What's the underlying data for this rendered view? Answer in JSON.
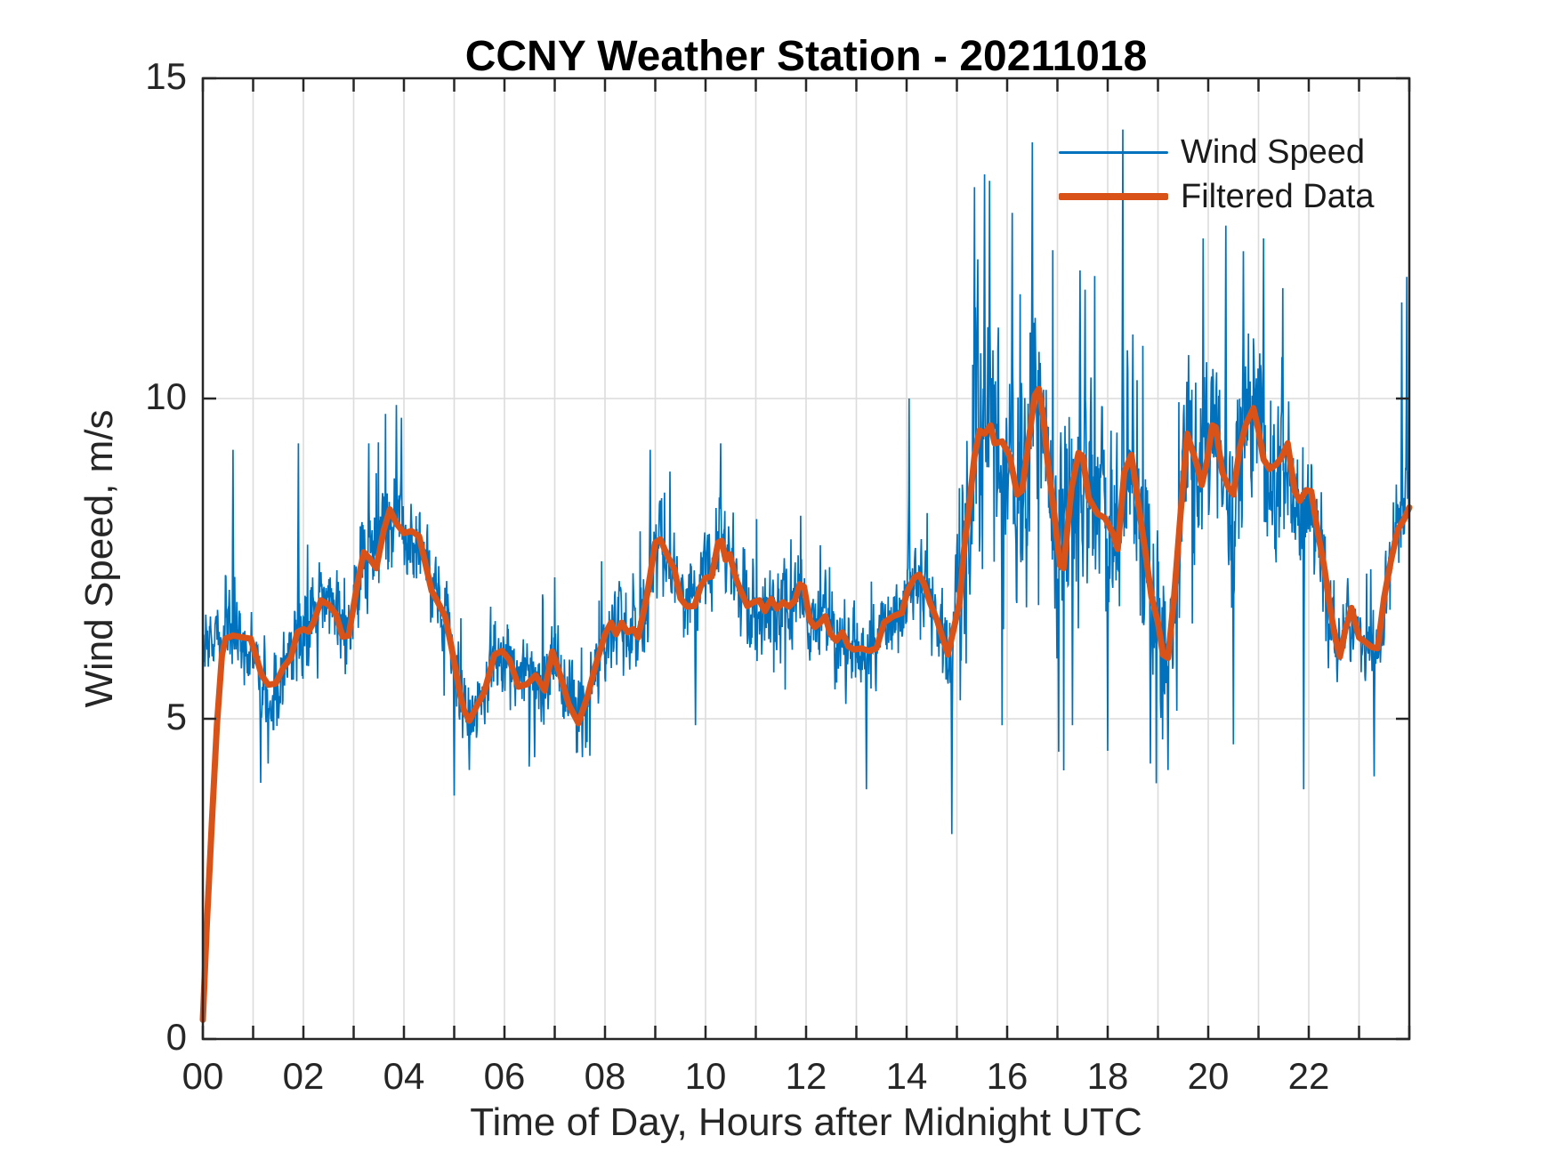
{
  "figure": {
    "title": "CCNY Weather Station - 20211018"
  },
  "axes": {
    "xlabel": "Time of Day, Hours after Midnight UTC",
    "ylabel": "Wind Speed, m/s",
    "xlim": [
      0,
      24
    ],
    "ylim": [
      0,
      15
    ],
    "x_tick_step_hours": 1,
    "x_label_hours": [
      0,
      2,
      4,
      6,
      8,
      10,
      12,
      14,
      16,
      18,
      20,
      22
    ],
    "x_tick_labels": [
      "00",
      "02",
      "04",
      "06",
      "08",
      "10",
      "12",
      "14",
      "16",
      "18",
      "20",
      "22"
    ],
    "y_ticks": [
      0,
      5,
      10,
      15
    ],
    "y_tick_labels": [
      "0",
      "5",
      "10",
      "15"
    ],
    "grid": "on"
  },
  "legend": {
    "location": "upper right inside, transparent",
    "entries": [
      {
        "label": "Wind Speed",
        "color": "#0072BD",
        "line_width": 2
      },
      {
        "label": "Filtered Data",
        "color": "#D95319",
        "line_width": 7
      }
    ]
  },
  "colors": {
    "raw_series": "#0072BD",
    "filtered_series": "#D95319",
    "grid": "#dcdcdc",
    "axis_box": "#262626",
    "text": "#262626",
    "title_text": "#000000"
  },
  "chart_data": {
    "type": "line",
    "title": "CCNY Weather Station - 20211018",
    "xlabel": "Time of Day, Hours after Midnight UTC",
    "ylabel": "Wind Speed, m/s",
    "xlim": [
      0,
      24
    ],
    "ylim": [
      0,
      15
    ],
    "series": [
      {
        "name": "Wind Speed",
        "color": "#0072BD",
        "description": "High-frequency noisy wind speed; rendered as filtered baseline plus seeded stochastic gust noise bounded by noise_envelope and pinned at extreme_points."
      },
      {
        "name": "Filtered Data",
        "color": "#D95319",
        "points_h_v": [
          [
            0,
            0.3
          ],
          [
            0.08,
            1.8
          ],
          [
            0.18,
            3.4
          ],
          [
            0.28,
            4.9
          ],
          [
            0.38,
            6.0
          ],
          [
            0.45,
            6.25
          ],
          [
            0.6,
            6.3
          ],
          [
            0.8,
            6.27
          ],
          [
            0.95,
            6.25
          ],
          [
            1.05,
            6.0
          ],
          [
            1.17,
            5.68
          ],
          [
            1.3,
            5.53
          ],
          [
            1.45,
            5.55
          ],
          [
            1.6,
            5.8
          ],
          [
            1.75,
            5.95
          ],
          [
            1.88,
            6.35
          ],
          [
            2.0,
            6.4
          ],
          [
            2.1,
            6.36
          ],
          [
            2.2,
            6.5
          ],
          [
            2.35,
            6.85
          ],
          [
            2.5,
            6.78
          ],
          [
            2.65,
            6.63
          ],
          [
            2.78,
            6.28
          ],
          [
            2.9,
            6.3
          ],
          [
            3.05,
            7.0
          ],
          [
            3.2,
            7.6
          ],
          [
            3.32,
            7.5
          ],
          [
            3.45,
            7.35
          ],
          [
            3.6,
            7.95
          ],
          [
            3.72,
            8.27
          ],
          [
            3.85,
            8.05
          ],
          [
            4.0,
            7.9
          ],
          [
            4.15,
            7.93
          ],
          [
            4.3,
            7.85
          ],
          [
            4.42,
            7.45
          ],
          [
            4.55,
            7.0
          ],
          [
            4.7,
            6.78
          ],
          [
            4.82,
            6.6
          ],
          [
            4.95,
            6.1
          ],
          [
            5.1,
            5.45
          ],
          [
            5.2,
            5.12
          ],
          [
            5.3,
            4.97
          ],
          [
            5.45,
            5.2
          ],
          [
            5.6,
            5.42
          ],
          [
            5.8,
            6.0
          ],
          [
            5.95,
            6.06
          ],
          [
            6.1,
            5.92
          ],
          [
            6.28,
            5.5
          ],
          [
            6.45,
            5.54
          ],
          [
            6.62,
            5.68
          ],
          [
            6.8,
            5.44
          ],
          [
            6.95,
            6.05
          ],
          [
            7.1,
            5.7
          ],
          [
            7.28,
            5.22
          ],
          [
            7.47,
            4.93
          ],
          [
            7.65,
            5.35
          ],
          [
            7.82,
            5.85
          ],
          [
            8.0,
            6.32
          ],
          [
            8.12,
            6.5
          ],
          [
            8.22,
            6.32
          ],
          [
            8.33,
            6.5
          ],
          [
            8.45,
            6.35
          ],
          [
            8.56,
            6.4
          ],
          [
            8.66,
            6.27
          ],
          [
            8.84,
            6.95
          ],
          [
            9.0,
            7.75
          ],
          [
            9.1,
            7.8
          ],
          [
            9.24,
            7.55
          ],
          [
            9.38,
            7.33
          ],
          [
            9.5,
            6.88
          ],
          [
            9.63,
            6.75
          ],
          [
            9.78,
            6.76
          ],
          [
            9.9,
            7.06
          ],
          [
            10.0,
            7.2
          ],
          [
            10.12,
            7.22
          ],
          [
            10.25,
            7.75
          ],
          [
            10.32,
            7.78
          ],
          [
            10.4,
            7.48
          ],
          [
            10.48,
            7.57
          ],
          [
            10.6,
            7.2
          ],
          [
            10.7,
            7.0
          ],
          [
            10.83,
            6.76
          ],
          [
            10.95,
            6.82
          ],
          [
            11.07,
            6.85
          ],
          [
            11.18,
            6.68
          ],
          [
            11.3,
            6.87
          ],
          [
            11.42,
            6.72
          ],
          [
            11.54,
            6.82
          ],
          [
            11.66,
            6.75
          ],
          [
            11.78,
            6.85
          ],
          [
            11.87,
            7.1
          ],
          [
            11.96,
            7.06
          ],
          [
            12.07,
            6.55
          ],
          [
            12.17,
            6.43
          ],
          [
            12.28,
            6.5
          ],
          [
            12.38,
            6.6
          ],
          [
            12.48,
            6.33
          ],
          [
            12.6,
            6.22
          ],
          [
            12.72,
            6.35
          ],
          [
            12.84,
            6.13
          ],
          [
            12.95,
            6.08
          ],
          [
            13.1,
            6.1
          ],
          [
            13.25,
            6.06
          ],
          [
            13.4,
            6.1
          ],
          [
            13.55,
            6.5
          ],
          [
            13.73,
            6.6
          ],
          [
            13.9,
            6.65
          ],
          [
            14.02,
            7.0
          ],
          [
            14.15,
            7.2
          ],
          [
            14.25,
            7.25
          ],
          [
            14.35,
            7.1
          ],
          [
            14.47,
            6.8
          ],
          [
            14.6,
            6.55
          ],
          [
            14.7,
            6.3
          ],
          [
            14.82,
            6.0
          ],
          [
            14.95,
            6.45
          ],
          [
            15.05,
            6.8
          ],
          [
            15.15,
            7.7
          ],
          [
            15.25,
            8.35
          ],
          [
            15.35,
            9.1
          ],
          [
            15.45,
            9.5
          ],
          [
            15.55,
            9.45
          ],
          [
            15.67,
            9.58
          ],
          [
            15.75,
            9.3
          ],
          [
            15.9,
            9.33
          ],
          [
            16.05,
            9.1
          ],
          [
            16.2,
            8.5
          ],
          [
            16.3,
            8.57
          ],
          [
            16.42,
            9.3
          ],
          [
            16.55,
            10.05
          ],
          [
            16.63,
            10.15
          ],
          [
            16.72,
            9.7
          ],
          [
            16.8,
            9.05
          ],
          [
            16.92,
            8.3
          ],
          [
            17.05,
            7.4
          ],
          [
            17.12,
            7.35
          ],
          [
            17.28,
            8.6
          ],
          [
            17.42,
            9.15
          ],
          [
            17.5,
            9.1
          ],
          [
            17.62,
            8.45
          ],
          [
            17.8,
            8.2
          ],
          [
            17.95,
            8.13
          ],
          [
            18.1,
            7.9
          ],
          [
            18.2,
            7.65
          ],
          [
            18.33,
            8.85
          ],
          [
            18.47,
            9.12
          ],
          [
            18.62,
            8.3
          ],
          [
            18.75,
            7.6
          ],
          [
            18.87,
            6.9
          ],
          [
            19.0,
            6.5
          ],
          [
            19.1,
            6.0
          ],
          [
            19.2,
            5.95
          ],
          [
            19.32,
            6.9
          ],
          [
            19.45,
            8.2
          ],
          [
            19.58,
            9.45
          ],
          [
            19.68,
            9.2
          ],
          [
            19.78,
            8.95
          ],
          [
            19.87,
            8.65
          ],
          [
            19.97,
            9.0
          ],
          [
            20.08,
            9.58
          ],
          [
            20.15,
            9.55
          ],
          [
            20.28,
            8.85
          ],
          [
            20.4,
            8.62
          ],
          [
            20.5,
            8.5
          ],
          [
            20.62,
            9.2
          ],
          [
            20.75,
            9.6
          ],
          [
            20.9,
            9.85
          ],
          [
            21.0,
            9.5
          ],
          [
            21.1,
            9.05
          ],
          [
            21.22,
            8.9
          ],
          [
            21.35,
            8.97
          ],
          [
            21.45,
            9.07
          ],
          [
            21.58,
            9.3
          ],
          [
            21.72,
            8.55
          ],
          [
            21.82,
            8.4
          ],
          [
            21.95,
            8.57
          ],
          [
            22.05,
            8.55
          ],
          [
            22.17,
            7.95
          ],
          [
            22.3,
            7.4
          ],
          [
            22.42,
            6.75
          ],
          [
            22.53,
            6.25
          ],
          [
            22.62,
            5.97
          ],
          [
            22.73,
            6.4
          ],
          [
            22.85,
            6.73
          ],
          [
            23.0,
            6.27
          ],
          [
            23.12,
            6.2
          ],
          [
            23.25,
            6.12
          ],
          [
            23.37,
            6.1
          ],
          [
            23.5,
            6.9
          ],
          [
            23.63,
            7.45
          ],
          [
            23.77,
            7.95
          ],
          [
            23.9,
            8.12
          ],
          [
            24.0,
            8.3
          ]
        ]
      }
    ],
    "noise_envelope_h_from_to_amp": [
      [
        0,
        0.45,
        0.9
      ],
      [
        0.45,
        3.0,
        1.25
      ],
      [
        3.0,
        4.6,
        1.45
      ],
      [
        4.6,
        8.0,
        1.15
      ],
      [
        8.0,
        12.0,
        1.25
      ],
      [
        12.0,
        14.7,
        1.2
      ],
      [
        14.7,
        15.05,
        1.8
      ],
      [
        15.05,
        19.1,
        3.1
      ],
      [
        19.1,
        21.6,
        2.5
      ],
      [
        21.6,
        22.4,
        1.7
      ],
      [
        22.4,
        23.5,
        1.1
      ],
      [
        23.5,
        24.01,
        1.5
      ]
    ],
    "extreme_points_h_v": [
      [
        0.6,
        9.2
      ],
      [
        1.15,
        4.0
      ],
      [
        1.3,
        4.3
      ],
      [
        1.9,
        9.3
      ],
      [
        3.3,
        9.3
      ],
      [
        3.85,
        9.9
      ],
      [
        3.95,
        9.7
      ],
      [
        5.0,
        3.8
      ],
      [
        5.3,
        4.2
      ],
      [
        6.6,
        4.4
      ],
      [
        7.55,
        4.4
      ],
      [
        8.9,
        9.2
      ],
      [
        9.8,
        4.9
      ],
      [
        10.3,
        9.3
      ],
      [
        13.2,
        3.9
      ],
      [
        14.05,
        10.0
      ],
      [
        14.9,
        3.2
      ],
      [
        15.35,
        13.3
      ],
      [
        15.55,
        13.5
      ],
      [
        15.65,
        13.4
      ],
      [
        15.9,
        4.9
      ],
      [
        16.1,
        12.9
      ],
      [
        16.5,
        14.0
      ],
      [
        17.3,
        4.9
      ],
      [
        17.45,
        12.0
      ],
      [
        17.55,
        11.7
      ],
      [
        18.0,
        4.5
      ],
      [
        18.3,
        14.2
      ],
      [
        18.5,
        11.0
      ],
      [
        18.85,
        4.3
      ],
      [
        19.2,
        4.2
      ],
      [
        19.9,
        12.5
      ],
      [
        20.35,
        12.7
      ],
      [
        20.5,
        4.6
      ],
      [
        20.7,
        12.3
      ],
      [
        21.1,
        12.5
      ],
      [
        21.9,
        3.9
      ],
      [
        23.3,
        4.1
      ],
      [
        23.85,
        11.5
      ],
      [
        23.95,
        11.9
      ]
    ],
    "legend_position": "upper right",
    "grid": "on"
  }
}
